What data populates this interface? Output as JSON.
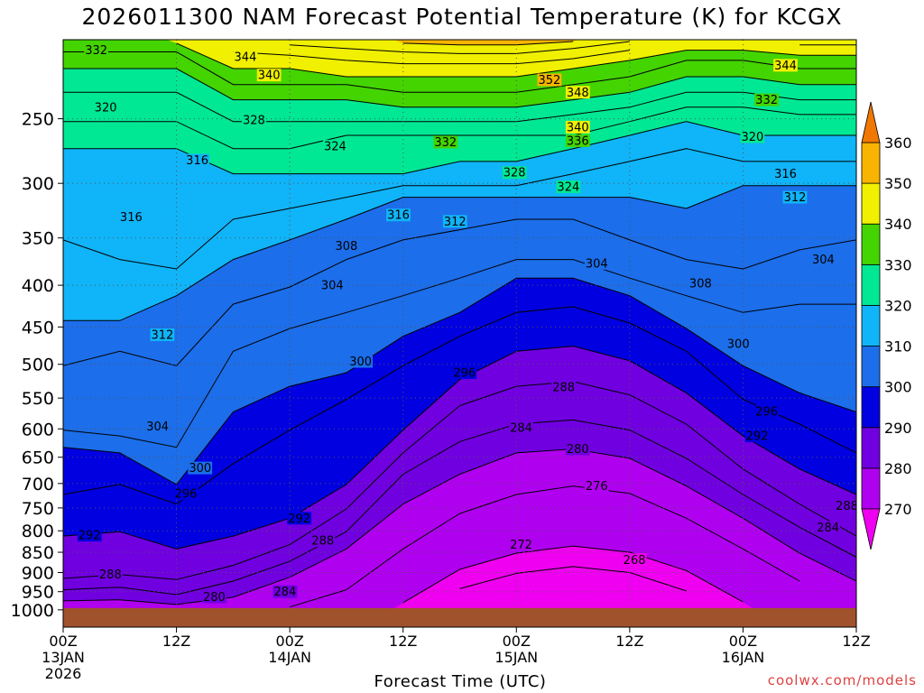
{
  "title": "2026011300 NAM Forecast Potential Temperature (K) for KCGX",
  "credit": "coolwx.com/models",
  "chart_data": {
    "type": "heatmap",
    "title": "2026011300 NAM Forecast Potential Temperature (K) for KCGX",
    "xlabel": "Forecast Time (UTC)",
    "ylabel": "",
    "x_ticks": [
      {
        "hour": 0,
        "label": [
          "00Z",
          "13JAN",
          "2026"
        ]
      },
      {
        "hour": 12,
        "label": [
          "12Z"
        ]
      },
      {
        "hour": 24,
        "label": [
          "00Z",
          "14JAN"
        ]
      },
      {
        "hour": 36,
        "label": [
          "12Z"
        ]
      },
      {
        "hour": 48,
        "label": [
          "00Z",
          "15JAN"
        ]
      },
      {
        "hour": 60,
        "label": [
          "12Z"
        ]
      },
      {
        "hour": 72,
        "label": [
          "00Z",
          "16JAN"
        ]
      },
      {
        "hour": 84,
        "label": [
          "12Z"
        ]
      }
    ],
    "xlim": [
      0,
      84
    ],
    "y_ticks": [
      250,
      300,
      350,
      400,
      450,
      500,
      550,
      600,
      650,
      700,
      750,
      800,
      850,
      900,
      950,
      1000
    ],
    "ylim": [
      1050,
      200
    ],
    "y_scale": "log",
    "grid": true,
    "colorbar": {
      "labels": [
        360,
        350,
        340,
        330,
        320,
        310,
        300,
        290,
        280,
        270
      ],
      "bounds": [
        270,
        280,
        290,
        300,
        310,
        320,
        330,
        340,
        350,
        360
      ],
      "colors": [
        "#f000f0",
        "#b000f0",
        "#7000e0",
        "#0000e0",
        "#1c6eea",
        "#10b4f8",
        "#00e894",
        "#44d400",
        "#f0f000",
        "#f8b400",
        "#f07800"
      ],
      "placement": "right"
    },
    "surface_color": "#a0522d",
    "hours": [
      0,
      6,
      12,
      18,
      24,
      30,
      36,
      42,
      48,
      54,
      60,
      66,
      72,
      78,
      84
    ],
    "isentropes": [
      {
        "theta": 268,
        "p": [
          null,
          null,
          null,
          null,
          null,
          null,
          null,
          942,
          902,
          885,
          900,
          948,
          null,
          null,
          null
        ]
      },
      {
        "theta": 272,
        "p": [
          null,
          null,
          null,
          null,
          null,
          null,
          980,
          892,
          852,
          835,
          850,
          895,
          978,
          null,
          null
        ]
      },
      {
        "theta": 276,
        "p": [
          null,
          null,
          null,
          null,
          992,
          945,
          842,
          762,
          722,
          705,
          720,
          772,
          842,
          922,
          null
        ]
      },
      {
        "theta": 280,
        "p": [
          975,
          972,
          985,
          965,
          912,
          842,
          742,
          682,
          642,
          635,
          652,
          705,
          772,
          852,
          922
        ]
      },
      {
        "theta": 284,
        "p": [
          945,
          938,
          958,
          922,
          872,
          802,
          682,
          622,
          592,
          585,
          602,
          652,
          722,
          792,
          862
        ]
      },
      {
        "theta": 288,
        "p": [
          915,
          905,
          918,
          882,
          832,
          752,
          642,
          562,
          532,
          525,
          545,
          592,
          672,
          742,
          812
        ]
      },
      {
        "theta": 292,
        "p": [
          812,
          802,
          842,
          812,
          772,
          702,
          602,
          522,
          482,
          475,
          495,
          542,
          612,
          672,
          722
        ]
      },
      {
        "theta": 296,
        "p": [
          722,
          702,
          742,
          662,
          602,
          552,
          502,
          462,
          432,
          425,
          445,
          482,
          552,
          592,
          642
        ]
      },
      {
        "theta": 300,
        "p": [
          632,
          642,
          702,
          572,
          532,
          512,
          462,
          432,
          392,
          392,
          412,
          452,
          502,
          542,
          572
        ]
      },
      {
        "theta": 304,
        "p": [
          602,
          612,
          632,
          482,
          452,
          432,
          412,
          392,
          372,
          372,
          392,
          412,
          432,
          422,
          422
        ]
      },
      {
        "theta": 308,
        "p": [
          502,
          482,
          502,
          422,
          402,
          372,
          352,
          342,
          332,
          332,
          352,
          372,
          382,
          362,
          352
        ]
      },
      {
        "theta": 312,
        "p": [
          442,
          442,
          412,
          372,
          352,
          332,
          312,
          312,
          312,
          312,
          312,
          322,
          302,
          302,
          302
        ]
      },
      {
        "theta": 316,
        "p": [
          352,
          372,
          382,
          332,
          322,
          312,
          302,
          302,
          302,
          292,
          282,
          272,
          282,
          282,
          282
        ]
      },
      {
        "theta": 320,
        "p": [
          272,
          272,
          272,
          292,
          292,
          292,
          292,
          282,
          282,
          272,
          262,
          252,
          262,
          262,
          262
        ]
      },
      {
        "theta": 324,
        "p": [
          252,
          252,
          252,
          272,
          272,
          262,
          262,
          262,
          262,
          262,
          252,
          242,
          242,
          247,
          247
        ]
      },
      {
        "theta": 328,
        "p": [
          232,
          232,
          232,
          252,
          252,
          252,
          252,
          252,
          252,
          247,
          242,
          232,
          232,
          237,
          237
        ]
      },
      {
        "theta": 332,
        "p": [
          217,
          217,
          217,
          237,
          237,
          237,
          242,
          242,
          242,
          237,
          232,
          222,
          222,
          227,
          227
        ]
      },
      {
        "theta": 336,
        "p": [
          207,
          207,
          207,
          227,
          227,
          227,
          232,
          232,
          232,
          227,
          222,
          212,
          212,
          217,
          217
        ]
      },
      {
        "theta": 340,
        "p": [
          null,
          null,
          202,
          217,
          217,
          222,
          222,
          222,
          222,
          217,
          212,
          206,
          206,
          209,
          209
        ]
      },
      {
        "theta": 344,
        "p": [
          null,
          null,
          null,
          207,
          209,
          212,
          214,
          214,
          214,
          211,
          206,
          null,
          null,
          203,
          203
        ]
      },
      {
        "theta": 348,
        "p": [
          null,
          null,
          null,
          null,
          203,
          205,
          207,
          208,
          208,
          205,
          201,
          null,
          null,
          null,
          null
        ]
      },
      {
        "theta": 352,
        "p": [
          null,
          null,
          null,
          null,
          null,
          null,
          202,
          203,
          203,
          201,
          null,
          null,
          null,
          null,
          null
        ]
      }
    ],
    "contour_labels": [
      {
        "text": "332",
        "hour": 3.5,
        "p": 206
      },
      {
        "text": "320",
        "hour": 4.5,
        "p": 242
      },
      {
        "text": "316",
        "hour": 14.2,
        "p": 281
      },
      {
        "text": "316",
        "hour": 7.2,
        "p": 330
      },
      {
        "text": "344",
        "hour": 19.3,
        "p": 210
      },
      {
        "text": "340",
        "hour": 21.8,
        "p": 221
      },
      {
        "text": "328",
        "hour": 20.2,
        "p": 251
      },
      {
        "text": "324",
        "hour": 28.8,
        "p": 270
      },
      {
        "text": "352",
        "hour": 51.5,
        "p": 224
      },
      {
        "text": "348",
        "hour": 54.5,
        "p": 232
      },
      {
        "text": "340",
        "hour": 54.5,
        "p": 256
      },
      {
        "text": "336",
        "hour": 54.5,
        "p": 266
      },
      {
        "text": "332",
        "hour": 40.5,
        "p": 267
      },
      {
        "text": "328",
        "hour": 47.8,
        "p": 291
      },
      {
        "text": "324",
        "hour": 53.5,
        "p": 303
      },
      {
        "text": "316",
        "hour": 35.5,
        "p": 328
      },
      {
        "text": "312",
        "hour": 41.5,
        "p": 334
      },
      {
        "text": "308",
        "hour": 30,
        "p": 358
      },
      {
        "text": "304",
        "hour": 28.5,
        "p": 400
      },
      {
        "text": "304",
        "hour": 56.5,
        "p": 376
      },
      {
        "text": "344",
        "hour": 76.5,
        "p": 215
      },
      {
        "text": "332",
        "hour": 74.5,
        "p": 237
      },
      {
        "text": "320",
        "hour": 73,
        "p": 263
      },
      {
        "text": "316",
        "hour": 76.5,
        "p": 292
      },
      {
        "text": "312",
        "hour": 77.5,
        "p": 312
      },
      {
        "text": "308",
        "hour": 67.5,
        "p": 398
      },
      {
        "text": "304",
        "hour": 80.5,
        "p": 372
      },
      {
        "text": "312",
        "hour": 10.5,
        "p": 460
      },
      {
        "text": "300",
        "hour": 31.5,
        "p": 496
      },
      {
        "text": "296",
        "hour": 42.5,
        "p": 512
      },
      {
        "text": "300",
        "hour": 71.5,
        "p": 472
      },
      {
        "text": "288",
        "hour": 53,
        "p": 533
      },
      {
        "text": "284",
        "hour": 48.5,
        "p": 598
      },
      {
        "text": "280",
        "hour": 54.5,
        "p": 635
      },
      {
        "text": "304",
        "hour": 10,
        "p": 596
      },
      {
        "text": "296",
        "hour": 74.5,
        "p": 571
      },
      {
        "text": "292",
        "hour": 73.5,
        "p": 612
      },
      {
        "text": "300",
        "hour": 14.5,
        "p": 670
      },
      {
        "text": "296",
        "hour": 13,
        "p": 720
      },
      {
        "text": "276",
        "hour": 56.5,
        "p": 705
      },
      {
        "text": "288",
        "hour": 83,
        "p": 745
      },
      {
        "text": "284",
        "hour": 81,
        "p": 792
      },
      {
        "text": "292",
        "hour": 2.8,
        "p": 810
      },
      {
        "text": "292",
        "hour": 25,
        "p": 772
      },
      {
        "text": "288",
        "hour": 27.5,
        "p": 822
      },
      {
        "text": "272",
        "hour": 48.5,
        "p": 832
      },
      {
        "text": "268",
        "hour": 60.5,
        "p": 868
      },
      {
        "text": "288",
        "hour": 5,
        "p": 905
      },
      {
        "text": "284",
        "hour": 23.5,
        "p": 950
      },
      {
        "text": "280",
        "hour": 16,
        "p": 964
      }
    ]
  }
}
